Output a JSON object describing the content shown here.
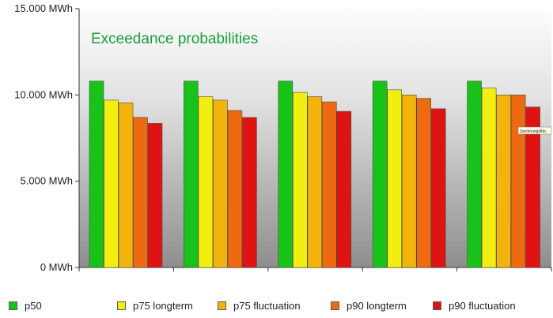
{
  "chart_data": {
    "type": "bar",
    "title": "Exceedance probabilities",
    "title_color": "#1a9e3a",
    "xlabel": "",
    "ylabel": "",
    "ylim": [
      0,
      15000
    ],
    "ytick_values": [
      0,
      5000,
      10000,
      15000
    ],
    "ytick_labels": [
      "0 MWh",
      "5.000 MWh",
      "10.000 MWh",
      "15.000 MWh"
    ],
    "categories": [
      "",
      "",
      "",
      "",
      ""
    ],
    "grid": false,
    "legend_position": "bottom",
    "series": [
      {
        "name": "p50",
        "color": "#19c219",
        "values": [
          10800,
          10800,
          10800,
          10800,
          10800
        ]
      },
      {
        "name": "p75 longterm",
        "color": "#f2ee10",
        "values": [
          9700,
          9900,
          10150,
          10300,
          10400
        ]
      },
      {
        "name": "p75 fluctuation",
        "color": "#f2b40c",
        "values": [
          9550,
          9700,
          9900,
          10000,
          10000
        ]
      },
      {
        "name": "p90 longterm",
        "color": "#ee6a10",
        "values": [
          8700,
          9100,
          9600,
          9800,
          10000
        ]
      },
      {
        "name": "p90 fluctuation",
        "color": "#e01313",
        "values": [
          8350,
          8700,
          9050,
          9200,
          9300
        ]
      }
    ],
    "annotation": "Zeichnungsfläc"
  }
}
